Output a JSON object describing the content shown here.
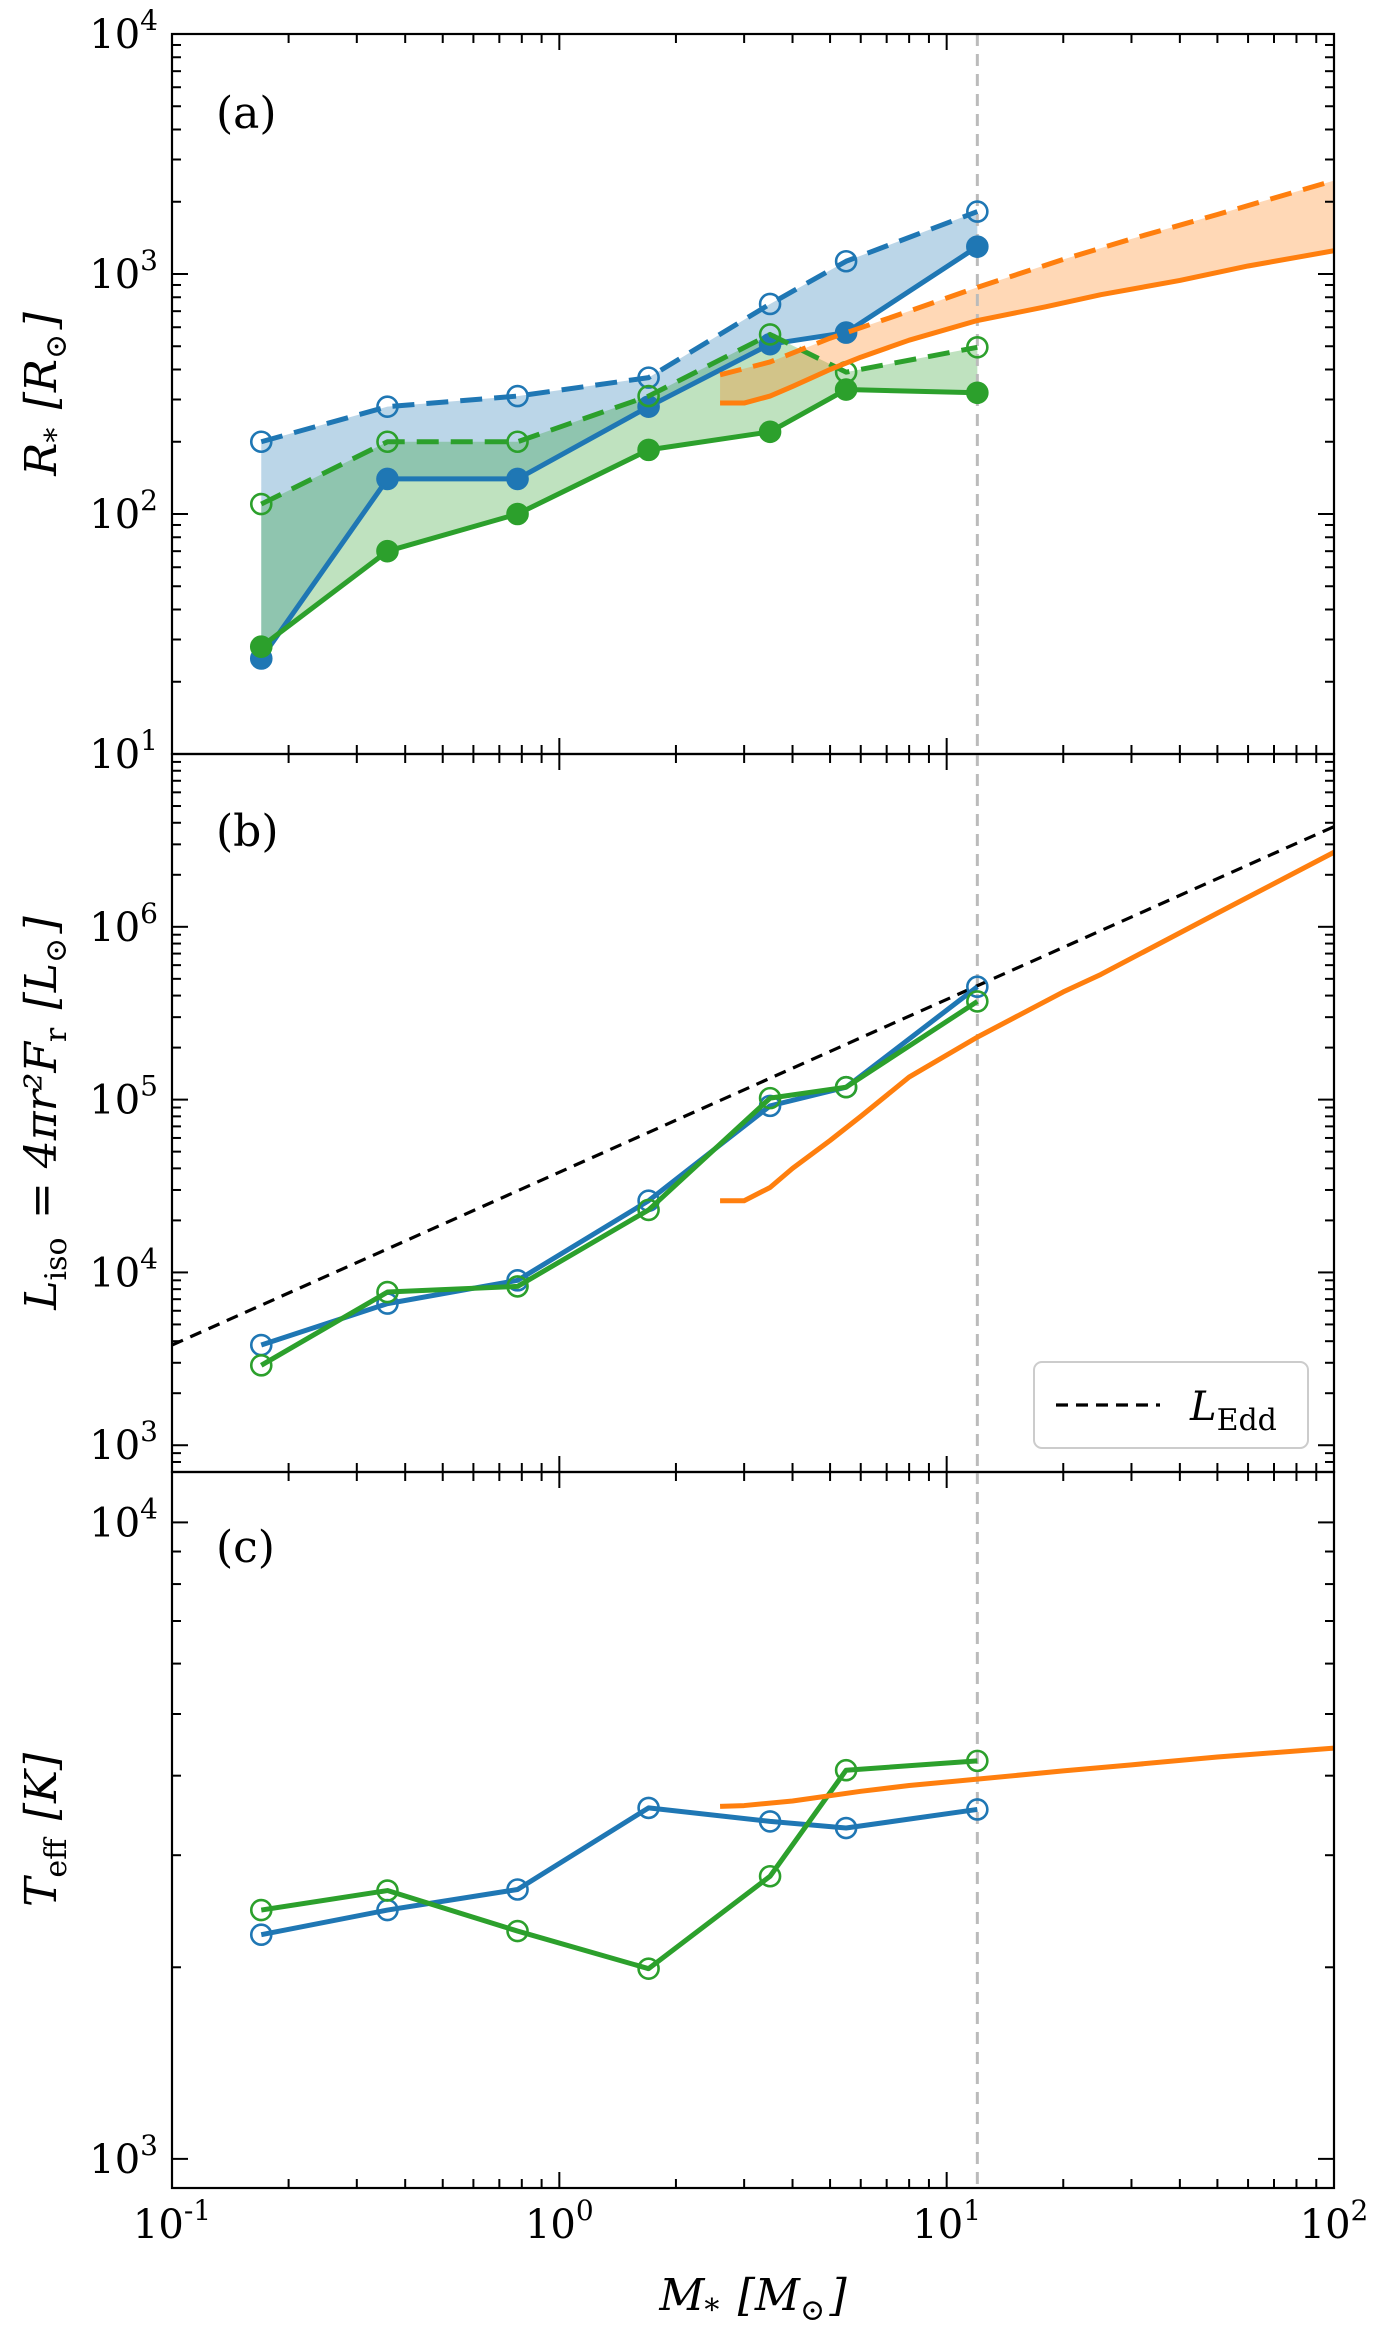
{
  "chart_data": {
    "type": "line",
    "x_axis": {
      "label": "M_* [M_⊙]",
      "scale": "log",
      "xlim": [
        0.1,
        100
      ],
      "tick_labels": [
        "10^-1",
        "10^0",
        "10^1",
        "10^2"
      ]
    },
    "vertical_marker": {
      "x": 12,
      "style": "dashed",
      "color": "#bbbbbb"
    },
    "panels": [
      {
        "panel_label": "(a)",
        "ylabel": "R_* [R_⊙]",
        "yscale": "log",
        "ylim": [
          10,
          10000
        ],
        "tick_labels": [
          "10^1",
          "10^2",
          "10^3",
          "10^4"
        ],
        "series": [
          {
            "color": "#1f77b4",
            "style": "solid",
            "marker": "filled",
            "x": [
              0.17,
              0.36,
              0.78,
              1.7,
              3.5,
              5.5,
              12
            ],
            "y": [
              25,
              140,
              140,
              280,
              510,
              570,
              1300
            ]
          },
          {
            "color": "#1f77b4",
            "style": "dashed",
            "marker": "open",
            "x": [
              0.17,
              0.36,
              0.78,
              1.7,
              3.5,
              5.5,
              12
            ],
            "y": [
              200,
              280,
              310,
              370,
              750,
              1130,
              1820
            ]
          },
          {
            "color": "#2ca02c",
            "style": "solid",
            "marker": "filled",
            "x": [
              0.17,
              0.36,
              0.78,
              1.7,
              3.5,
              5.5,
              12
            ],
            "y": [
              28,
              70,
              100,
              185,
              220,
              330,
              320
            ]
          },
          {
            "color": "#2ca02c",
            "style": "dashed",
            "marker": "open",
            "x": [
              0.17,
              0.36,
              0.78,
              1.7,
              3.5,
              5.5,
              12
            ],
            "y": [
              110,
              200,
              200,
              310,
              560,
              390,
              495
            ]
          },
          {
            "color": "#ff7f0e",
            "style": "solid",
            "marker": "none",
            "x": [
              2.6,
              3.0,
              3.5,
              4.0,
              5.0,
              6.0,
              8.0,
              12,
              18,
              25,
              40,
              60,
              100
            ],
            "y": [
              290,
              290,
              310,
              340,
              400,
              450,
              530,
              640,
              730,
              820,
              940,
              1080,
              1250
            ]
          },
          {
            "color": "#ff7f0e",
            "style": "dashed",
            "marker": "none",
            "x": [
              2.6,
              3.5,
              5.0,
              8.0,
              12,
              20,
              30,
              50,
              100
            ],
            "y": [
              380,
              430,
              540,
              700,
              880,
              1150,
              1400,
              1770,
              2450
            ]
          }
        ],
        "fills": [
          {
            "color": "#1f77b4",
            "between": [
              0,
              1
            ]
          },
          {
            "color": "#2ca02c",
            "between": [
              2,
              3
            ]
          },
          {
            "color": "#ff7f0e",
            "between": [
              4,
              5
            ]
          }
        ]
      },
      {
        "panel_label": "(b)",
        "ylabel": "L_iso = 4πr²F_r [L_⊙]",
        "yscale": "log",
        "ylim": [
          700,
          10000000
        ],
        "tick_labels": [
          "10^3",
          "10^4",
          "10^5",
          "10^6"
        ],
        "legend": {
          "label": "L_Edd",
          "position": "lower-right",
          "style": "dashed",
          "color": "#000000"
        },
        "series": [
          {
            "color": "#000000",
            "style": "dashed",
            "marker": "none",
            "name": "L_Edd",
            "x": [
              0.1,
              100
            ],
            "y": [
              3800,
              3800000
            ]
          },
          {
            "color": "#1f77b4",
            "style": "solid",
            "marker": "open",
            "x": [
              0.17,
              0.36,
              0.78,
              1.7,
              3.5,
              5.5,
              12
            ],
            "y": [
              3800,
              6600,
              9000,
              26000,
              92000,
              118000,
              450000
            ]
          },
          {
            "color": "#2ca02c",
            "style": "solid",
            "marker": "open",
            "x": [
              0.17,
              0.36,
              0.78,
              1.7,
              3.5,
              5.5,
              12
            ],
            "y": [
              2900,
              7700,
              8300,
              23000,
              102000,
              118000,
              370000
            ]
          },
          {
            "color": "#ff7f0e",
            "style": "solid",
            "marker": "none",
            "x": [
              2.6,
              3.0,
              3.5,
              4.0,
              5.0,
              6.0,
              8.0,
              12,
              20,
              25,
              50,
              100
            ],
            "y": [
              26000,
              26000,
              31000,
              40000,
              58000,
              80000,
              135000,
              230000,
              420000,
              530000,
              1200000,
              2700000
            ]
          }
        ]
      },
      {
        "panel_label": "(c)",
        "ylabel": "T_eff [K]",
        "yscale": "log",
        "ylim": [
          900,
          12000
        ],
        "tick_labels": [
          "10^3",
          "10^4"
        ],
        "series": [
          {
            "color": "#1f77b4",
            "style": "solid",
            "marker": "open",
            "x": [
              0.17,
              0.36,
              0.78,
              1.7,
              3.5,
              5.5,
              12
            ],
            "y": [
              2250,
              2460,
              2650,
              3560,
              3390,
              3310,
              3540
            ]
          },
          {
            "color": "#2ca02c",
            "style": "solid",
            "marker": "open",
            "x": [
              0.17,
              0.36,
              0.78,
              1.7,
              3.5,
              5.5,
              12
            ],
            "y": [
              2460,
              2640,
              2280,
              1990,
              2780,
              4080,
              4220
            ]
          },
          {
            "color": "#ff7f0e",
            "style": "solid",
            "marker": "none",
            "x": [
              2.6,
              3.0,
              4.0,
              6.0,
              8.0,
              12,
              20,
              30,
              50,
              100
            ],
            "y": [
              3580,
              3590,
              3650,
              3780,
              3860,
              3950,
              4070,
              4160,
              4280,
              4420
            ]
          }
        ]
      }
    ]
  }
}
